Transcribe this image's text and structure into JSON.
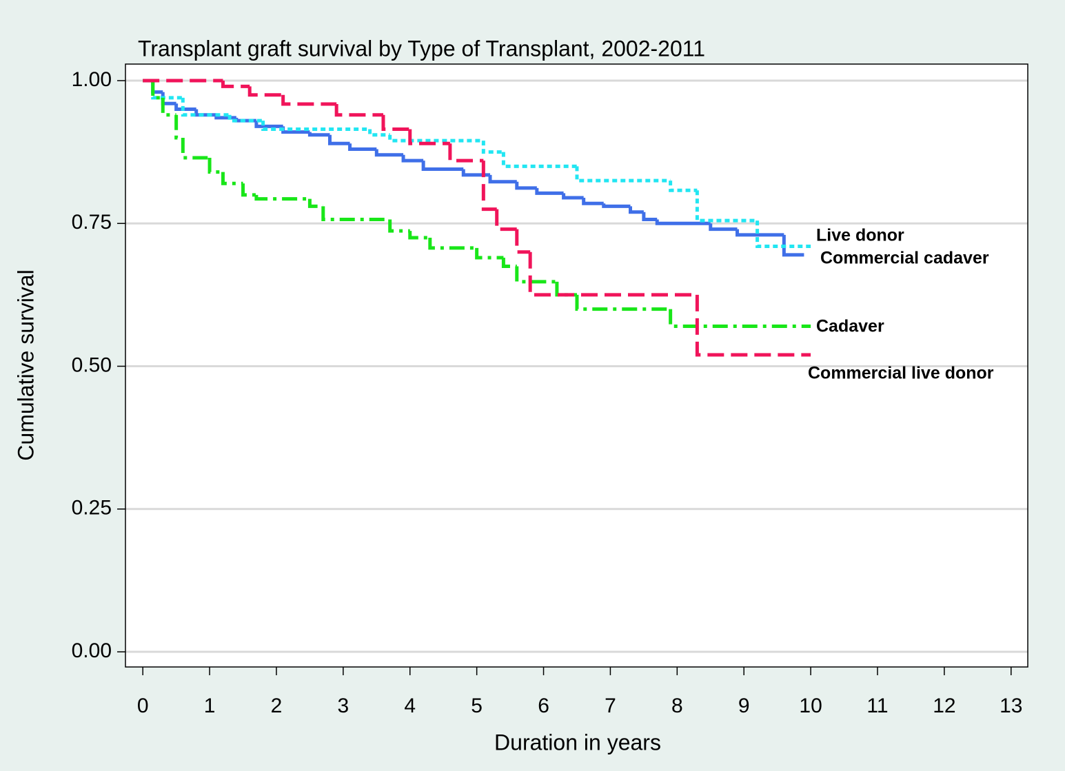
{
  "chart_data": {
    "type": "step",
    "title": "Transplant graft survival by Type of Transplant, 2002-2011",
    "x_label": "Duration in years",
    "y_label": "Cumulative survival",
    "xlim": [
      -0.26,
      13.25
    ],
    "ylim": [
      -0.0265,
      1.029
    ],
    "xticks": [
      0,
      1,
      2,
      3,
      4,
      5,
      6,
      7,
      8,
      9,
      10,
      11,
      12,
      13
    ],
    "yticks": [
      {
        "value": 0,
        "label": "0.00"
      },
      {
        "value": 0.25,
        "label": "0.25"
      },
      {
        "value": 0.5,
        "label": "0.50"
      },
      {
        "value": 0.75,
        "label": "0.75"
      },
      {
        "value": 1,
        "label": "1.00"
      }
    ],
    "grid": true,
    "series": [
      {
        "name": "Live donor",
        "color": "#3f6fe8",
        "linestyle": "solid",
        "x": [
          0,
          0.15,
          0.3,
          0.5,
          0.8,
          1.1,
          1.4,
          1.7,
          2.1,
          2.5,
          2.8,
          3.1,
          3.5,
          3.9,
          4.2,
          4.8,
          5.2,
          5.6,
          5.9,
          6.3,
          6.6,
          6.9,
          7.3,
          7.5,
          7.7,
          8.5,
          8.9,
          9.6,
          9.9
        ],
        "values": [
          1.0,
          0.98,
          0.96,
          0.95,
          0.94,
          0.935,
          0.93,
          0.92,
          0.91,
          0.905,
          0.89,
          0.88,
          0.87,
          0.86,
          0.845,
          0.835,
          0.823,
          0.812,
          0.803,
          0.795,
          0.785,
          0.78,
          0.77,
          0.757,
          0.75,
          0.74,
          0.73,
          0.695,
          0.695
        ]
      },
      {
        "name": "Commercial cadaver",
        "color": "#22e6f2",
        "linestyle": "dotted",
        "x": [
          0,
          0.15,
          0.6,
          1.3,
          1.8,
          3.4,
          3.7,
          5.1,
          5.4,
          6.5,
          7.9,
          8.3,
          9.2,
          10.0
        ],
        "values": [
          1.0,
          0.97,
          0.94,
          0.93,
          0.915,
          0.905,
          0.895,
          0.875,
          0.85,
          0.825,
          0.808,
          0.755,
          0.71,
          0.71
        ]
      },
      {
        "name": "Cadaver",
        "color": "#19e619",
        "linestyle": "dashdot",
        "x": [
          0,
          0.15,
          0.3,
          0.5,
          0.6,
          1.0,
          1.2,
          1.5,
          1.7,
          2.5,
          2.7,
          3.7,
          4.0,
          4.3,
          5.0,
          5.4,
          5.6,
          6.2,
          6.5,
          7.9,
          10.0
        ],
        "values": [
          1.0,
          0.97,
          0.94,
          0.9,
          0.865,
          0.84,
          0.82,
          0.8,
          0.793,
          0.78,
          0.757,
          0.737,
          0.725,
          0.707,
          0.69,
          0.675,
          0.648,
          0.625,
          0.6,
          0.57,
          0.57
        ]
      },
      {
        "name": "Commercial live donor",
        "color": "#f0145a",
        "linestyle": "dashed",
        "x": [
          0,
          1.2,
          1.6,
          2.1,
          2.9,
          3.6,
          4.0,
          4.6,
          5.1,
          5.3,
          5.6,
          5.8,
          8.3,
          10.0
        ],
        "values": [
          1.0,
          0.99,
          0.975,
          0.959,
          0.94,
          0.915,
          0.89,
          0.86,
          0.775,
          0.74,
          0.7,
          0.625,
          0.52,
          0.52
        ]
      }
    ]
  }
}
